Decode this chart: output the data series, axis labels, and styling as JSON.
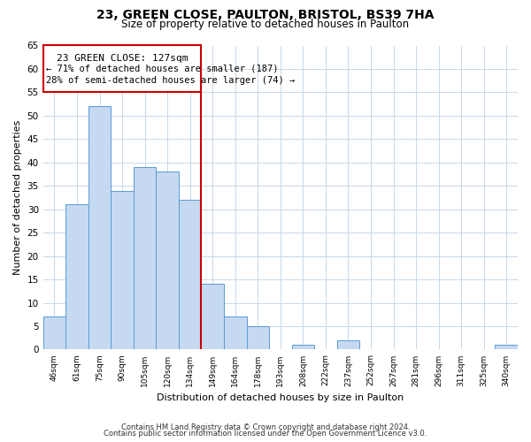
{
  "title": "23, GREEN CLOSE, PAULTON, BRISTOL, BS39 7HA",
  "subtitle": "Size of property relative to detached houses in Paulton",
  "xlabel": "Distribution of detached houses by size in Paulton",
  "ylabel": "Number of detached properties",
  "bar_labels": [
    "46sqm",
    "61sqm",
    "75sqm",
    "90sqm",
    "105sqm",
    "120sqm",
    "134sqm",
    "149sqm",
    "164sqm",
    "178sqm",
    "193sqm",
    "208sqm",
    "222sqm",
    "237sqm",
    "252sqm",
    "267sqm",
    "281sqm",
    "296sqm",
    "311sqm",
    "325sqm",
    "340sqm"
  ],
  "bar_values": [
    7,
    31,
    52,
    34,
    39,
    38,
    32,
    14,
    7,
    5,
    0,
    1,
    0,
    2,
    0,
    0,
    0,
    0,
    0,
    0,
    1
  ],
  "bar_color": "#c5d9f0",
  "bar_edge_color": "#5b9bd5",
  "highlight_bar_index": 6,
  "highlight_line_color": "#cc0000",
  "ylim": [
    0,
    65
  ],
  "yticks": [
    0,
    5,
    10,
    15,
    20,
    25,
    30,
    35,
    40,
    45,
    50,
    55,
    60,
    65
  ],
  "annotation_title": "23 GREEN CLOSE: 127sqm",
  "annotation_line1": "← 71% of detached houses are smaller (187)",
  "annotation_line2": "28% of semi-detached houses are larger (74) →",
  "annotation_box_color": "#ffffff",
  "annotation_box_edge": "#cc0000",
  "footer_line1": "Contains HM Land Registry data © Crown copyright and database right 2024.",
  "footer_line2": "Contains public sector information licensed under the Open Government Licence v3.0.",
  "background_color": "#ffffff",
  "grid_color": "#c8d8e8"
}
